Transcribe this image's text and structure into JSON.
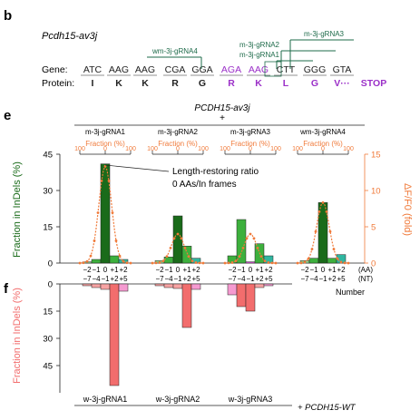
{
  "panel_b": {
    "label": "b",
    "gene_name": "Pcdh15-av3j",
    "gene_label": "Gene:",
    "protein_label": "Protein:",
    "codons": [
      "ATC",
      "AAG",
      "AAG",
      "CGA",
      "GGA",
      "AGA",
      "AAG",
      "CTT",
      "GGG",
      "GTA"
    ],
    "aminoacids": [
      "I",
      "K",
      "K",
      "R",
      "G",
      "R",
      "K",
      "L",
      "G",
      "V···",
      "STOP"
    ],
    "guides": [
      "m-3j-gRNA3",
      "m-3j-gRNA2",
      "m-3j-gRNA1",
      "wm-3j-gRNA4"
    ]
  },
  "panel_e": {
    "label": "e",
    "title": "PCDH15-av3j",
    "title_suffix": "+",
    "columns": [
      "m-3j-gRNA1",
      "m-3j-gRNA2",
      "m-3j-gRNA3",
      "wm-3j-gRNA4"
    ],
    "fraction_axis_label": "Fraction (%)",
    "fraction_ticks": [
      "100",
      "0",
      "100"
    ],
    "ylabel_left": "Fraction in InDels (%)",
    "ylabel_right": "ΔF/F0 (fold)",
    "annotation_1": "Length-restoring ratio",
    "annotation_2": "0 AAs/In frames",
    "aa_ticks": [
      "−2",
      "−1",
      "0",
      "+1",
      "+2"
    ],
    "nt_ticks": [
      "−7",
      "−4",
      "−1",
      "+2",
      "+5"
    ],
    "aa_unit": "(AA)",
    "nt_unit": "(NT)",
    "number_label": "Number"
  },
  "panel_f": {
    "label": "f",
    "ylabel": "Fraction in InDels (%)",
    "columns": [
      "w-3j-gRNA1",
      "w-3j-gRNA2",
      "w-3j-gRNA3"
    ],
    "footer": "+ PCDH15-WT"
  },
  "colors": {
    "dark_green": "#1a6b1a",
    "mid_green": "#3db03d",
    "light_green": "#8fd88f",
    "teal": "#2fb6a0",
    "magenta": "#e055e0",
    "purple": "#9b30c8",
    "orange": "#f07a3a",
    "salmon": "#f26d6d",
    "pink": "#f59ad0",
    "guide_green": "#1e6b4a"
  },
  "chart_data": [
    {
      "type": "bar",
      "name": "panel-e",
      "groups": [
        "m-3j-gRNA1",
        "m-3j-gRNA2",
        "m-3j-gRNA3",
        "wm-3j-gRNA4"
      ],
      "categories_aa": [
        "−2",
        "−1",
        "0",
        "+1",
        "+2"
      ],
      "ylim_left": [
        0,
        45
      ],
      "yticks_left": [
        0,
        15,
        30,
        45
      ],
      "ylim_right": [
        0,
        15
      ],
      "yticks_right": [
        0,
        5,
        10,
        15
      ],
      "series": [
        {
          "values": [
            0.5,
            1.5,
            41,
            3,
            1.5
          ]
        },
        {
          "values": [
            1,
            2.5,
            19.5,
            7,
            2
          ]
        },
        {
          "values": [
            3,
            18,
            0.5,
            8,
            3
          ]
        },
        {
          "values": [
            1,
            2,
            25,
            2,
            3.5
          ]
        }
      ]
    },
    {
      "type": "bar",
      "name": "panel-f",
      "groups": [
        "w-3j-gRNA1",
        "w-3j-gRNA2",
        "w-3j-gRNA3"
      ],
      "ylim": [
        0,
        60
      ],
      "yticks": [
        0,
        15,
        30,
        45
      ],
      "series": [
        {
          "values": [
            1,
            2,
            3,
            56,
            4
          ]
        },
        {
          "values": [
            1,
            2,
            2.5,
            24,
            3
          ]
        },
        {
          "values": [
            6,
            12.5,
            15,
            2,
            1
          ]
        }
      ]
    }
  ]
}
